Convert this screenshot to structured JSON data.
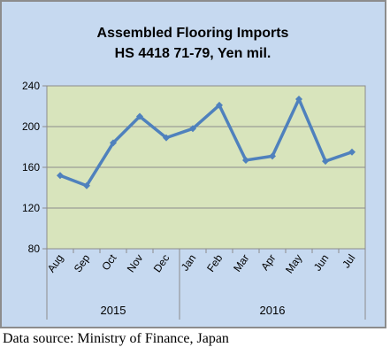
{
  "chart_data": {
    "type": "line",
    "title": "Assembled Flooring Imports",
    "subtitle": "HS 4418 71-79, Yen mil.",
    "categories": [
      "Aug",
      "Sep",
      "Oct",
      "Nov",
      "Dec",
      "Jan",
      "Feb",
      "Mar",
      "Apr",
      "May",
      "Jun",
      "Jul"
    ],
    "year_groups": [
      {
        "label": "2015",
        "start": 0,
        "end": 4
      },
      {
        "label": "2016",
        "start": 5,
        "end": 11
      }
    ],
    "series": [
      {
        "values": [
          152,
          142,
          184,
          210,
          189,
          198,
          221,
          167,
          171,
          227,
          166,
          175
        ],
        "color": "#4f81bd"
      }
    ],
    "ylim": [
      80,
      240
    ],
    "yticks": [
      80,
      120,
      160,
      200,
      240
    ],
    "grid": true,
    "plot_background": "#d8e4bc",
    "chart_background": "#c6d9f0",
    "xlabel": "",
    "ylabel": ""
  },
  "source_note": "Data source: Ministry of Finance, Japan"
}
